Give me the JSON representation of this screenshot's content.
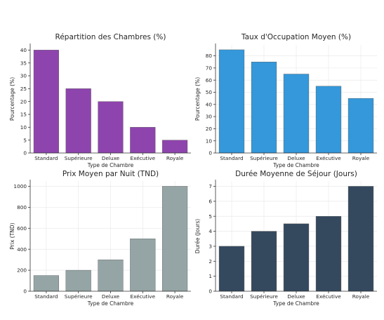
{
  "chart_data": [
    {
      "type": "bar",
      "title": "Répartition des Chambres (%)",
      "xlabel": "Type de Chambre",
      "ylabel": "Pourcentage (%)",
      "categories": [
        "Standard",
        "Supérieure",
        "Deluxe",
        "Exécutive",
        "Royale"
      ],
      "values": [
        40,
        25,
        20,
        10,
        5
      ],
      "ylim": [
        0,
        42
      ],
      "yticks": [
        0,
        5,
        10,
        15,
        20,
        25,
        30,
        35,
        40
      ],
      "color": "#8e44ad",
      "grid": false
    },
    {
      "type": "bar",
      "title": "Taux d'Occupation Moyen (%)",
      "xlabel": "Type de Chambre",
      "ylabel": "Pourcentage (%)",
      "categories": [
        "Standard",
        "Supérieure",
        "Deluxe",
        "Exécutive",
        "Royale"
      ],
      "values": [
        85,
        75,
        65,
        55,
        45
      ],
      "ylim": [
        0,
        89
      ],
      "yticks": [
        0,
        10,
        20,
        30,
        40,
        50,
        60,
        70,
        80
      ],
      "color": "#3498db",
      "grid": true
    },
    {
      "type": "bar",
      "title": "Prix Moyen par Nuit (TND)",
      "xlabel": "Type de Chambre",
      "ylabel": "Prix (TND)",
      "categories": [
        "Standard",
        "Supérieure",
        "Deluxe",
        "Exécutive",
        "Royale"
      ],
      "values": [
        150,
        200,
        300,
        500,
        1000
      ],
      "ylim": [
        0,
        1050
      ],
      "yticks": [
        0,
        200,
        400,
        600,
        800,
        1000
      ],
      "color": "#95a5a6",
      "grid": true
    },
    {
      "type": "bar",
      "title": "Durée Moyenne de Séjour (Jours)",
      "xlabel": "Type de Chambre",
      "ylabel": "Durée (Jours)",
      "categories": [
        "Standard",
        "Supérieure",
        "Deluxe",
        "Exécutive",
        "Royale"
      ],
      "values": [
        3,
        4,
        4.5,
        5,
        7
      ],
      "ylim": [
        0,
        7.35
      ],
      "yticks": [
        0,
        1,
        2,
        3,
        4,
        5,
        6,
        7
      ],
      "color": "#34495e",
      "grid": true
    }
  ]
}
